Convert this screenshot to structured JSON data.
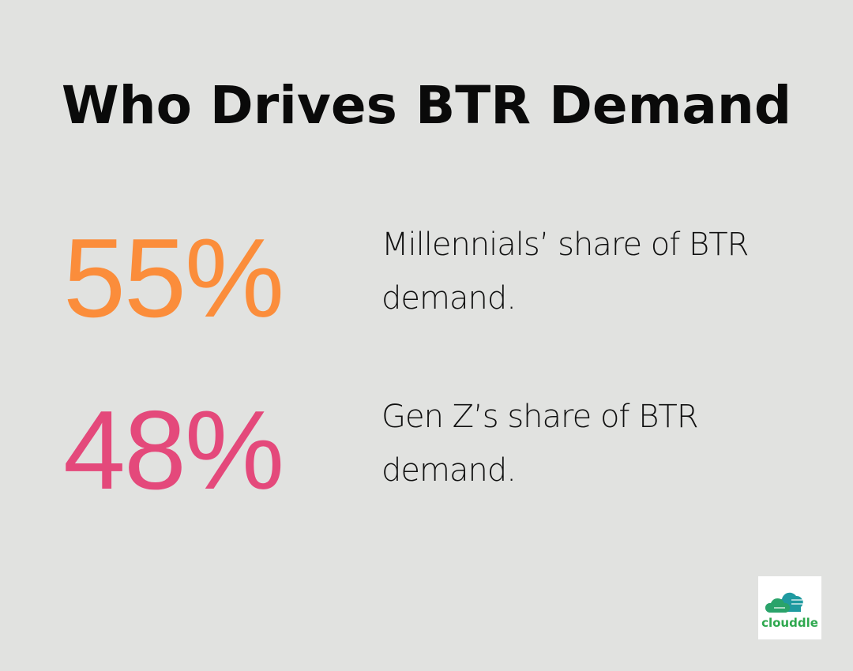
{
  "title": "Who Drives BTR Demand",
  "stats": [
    {
      "value": "55%",
      "description": "Millennials’ share of BTR demand.",
      "color": "#fb8d3b"
    },
    {
      "value": "48%",
      "description": "Gen Z’s share of BTR demand.",
      "color": "#e4497b"
    }
  ],
  "logo": {
    "text": "clouddle",
    "icon": "cloud-icon"
  }
}
